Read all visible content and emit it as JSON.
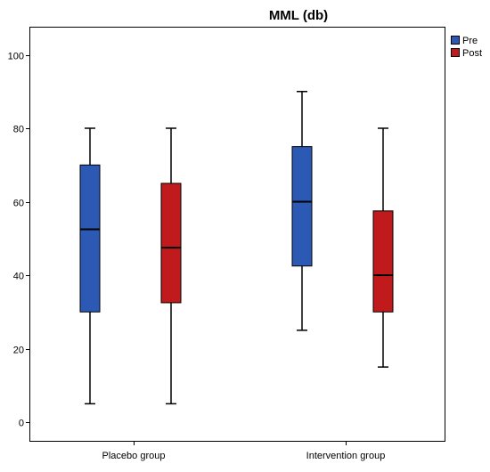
{
  "chart_data": {
    "type": "boxplot",
    "title": "MML (db)",
    "xlabel": "",
    "ylabel": "",
    "ylim": [
      -5,
      105
    ],
    "yticks": [
      0,
      20,
      40,
      60,
      80,
      100
    ],
    "grid": false,
    "legend_position": "top-right",
    "categories": [
      "Placebo group",
      "Intervention group"
    ],
    "series": [
      {
        "name": "Pre",
        "color": "#2c59b4",
        "boxes": [
          {
            "min": 5,
            "q1": 30,
            "median": 52.5,
            "q3": 70,
            "max": 80
          },
          {
            "min": 25,
            "q1": 42.5,
            "median": 60,
            "q3": 75,
            "max": 90
          }
        ]
      },
      {
        "name": "Post",
        "color": "#c01a1c",
        "boxes": [
          {
            "min": 5,
            "q1": 32.5,
            "median": 47.5,
            "q3": 65,
            "max": 80
          },
          {
            "min": 15,
            "q1": 30,
            "median": 40,
            "q3": 57.5,
            "max": 80
          }
        ]
      }
    ]
  }
}
